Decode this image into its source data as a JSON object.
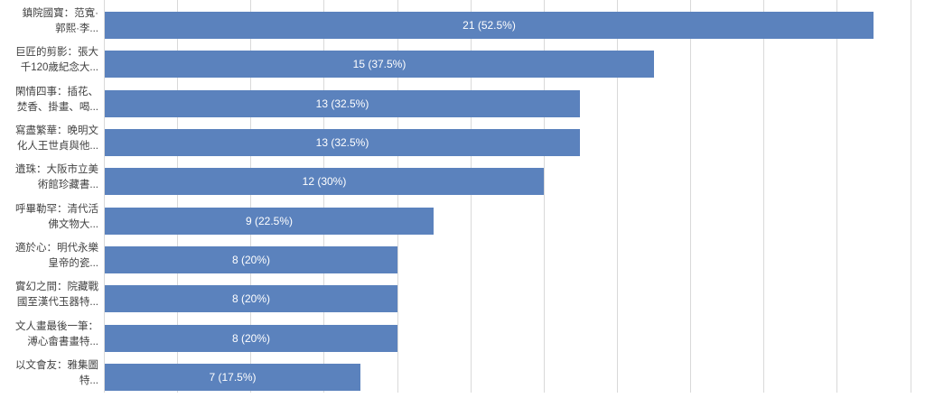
{
  "colors": {
    "bar": "#5b82bd",
    "gridline": "#d9d9d9",
    "category_text": "#424242",
    "value_text": "#ffffff",
    "background": "#ffffff"
  },
  "chart_data": {
    "type": "bar",
    "orientation": "horizontal",
    "title": "",
    "xlabel": "",
    "ylabel": "",
    "axis": {
      "min": 0,
      "gridline_step": 2,
      "visible_max": 22,
      "gridlines_visible": true
    },
    "legend": "none",
    "categories": [
      "鎮院國寶：范寬·郭熙·李...",
      "巨匠的剪影：張大千120歲紀念大...",
      "閑情四事：插花、焚香、掛畫、喝...",
      "寫盡繁華：晚明文化人王世貞與他...",
      "遺珠：大阪市立美術館珍藏書...",
      "呼畢勒罕：清代活佛文物大...",
      "適於心：明代永樂皇帝的瓷...",
      "實幻之間：院藏戰國至漢代玉器特...",
      "文人畫最後一筆：溥心畬書畫特...",
      "以文會友：雅集圖特..."
    ],
    "values": [
      21,
      15,
      13,
      13,
      12,
      9,
      8,
      8,
      8,
      7
    ],
    "percentages": [
      52.5,
      37.5,
      32.5,
      32.5,
      30,
      22.5,
      20,
      20,
      20,
      17.5
    ],
    "rows": [
      {
        "label_lines": [
          "鎮院國寶：范寬·",
          "郭熙·李..."
        ],
        "value": 21,
        "percent": 52.5,
        "label": "21 (52.5%)"
      },
      {
        "label_lines": [
          "巨匠的剪影：張大",
          "千120歲紀念大..."
        ],
        "value": 15,
        "percent": 37.5,
        "label": "15 (37.5%)"
      },
      {
        "label_lines": [
          "閑情四事：插花、",
          "焚香、掛畫、喝..."
        ],
        "value": 13,
        "percent": 32.5,
        "label": "13 (32.5%)"
      },
      {
        "label_lines": [
          "寫盡繁華：晚明文",
          "化人王世貞與他..."
        ],
        "value": 13,
        "percent": 32.5,
        "label": "13 (32.5%)"
      },
      {
        "label_lines": [
          "遺珠：大阪市立美",
          "術館珍藏書..."
        ],
        "value": 12,
        "percent": 30,
        "label": "12 (30%)"
      },
      {
        "label_lines": [
          "呼畢勒罕：清代活",
          "佛文物大..."
        ],
        "value": 9,
        "percent": 22.5,
        "label": "9 (22.5%)"
      },
      {
        "label_lines": [
          "適於心：明代永樂",
          "皇帝的瓷..."
        ],
        "value": 8,
        "percent": 20,
        "label": "8 (20%)"
      },
      {
        "label_lines": [
          "實幻之間：院藏戰",
          "國至漢代玉器特..."
        ],
        "value": 8,
        "percent": 20,
        "label": "8 (20%)"
      },
      {
        "label_lines": [
          "文人畫最後一筆：",
          "溥心畬書畫特..."
        ],
        "value": 8,
        "percent": 20,
        "label": "8 (20%)"
      },
      {
        "label_lines": [
          "以文會友：雅集圖",
          "特..."
        ],
        "value": 7,
        "percent": 17.5,
        "label": "7 (17.5%)"
      }
    ]
  }
}
